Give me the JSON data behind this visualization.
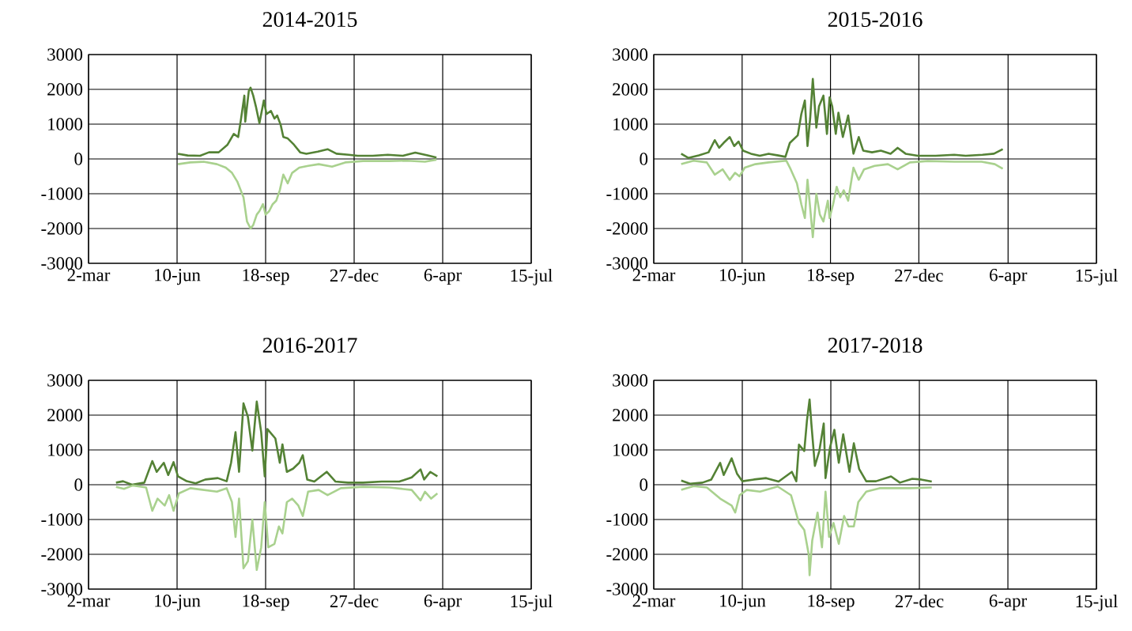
{
  "chart_data": [
    {
      "type": "line",
      "title": "2014-2015",
      "xlim": [
        "2014-03-02",
        "2015-07-15"
      ],
      "ylim": [
        -3000,
        3000
      ],
      "xticks": [
        {
          "value": "2014-03-02",
          "label": "2-mar"
        },
        {
          "value": "2014-06-10",
          "label": "10-jun"
        },
        {
          "value": "2014-09-18",
          "label": "18-sep"
        },
        {
          "value": "2014-12-27",
          "label": "27-dec"
        },
        {
          "value": "2015-04-06",
          "label": "6-apr"
        },
        {
          "value": "2015-07-15",
          "label": "15-jul"
        }
      ],
      "yticks": [
        -3000,
        -2000,
        -1000,
        0,
        1000,
        2000,
        3000
      ],
      "grid": true,
      "marker": "none",
      "line_style": "solid",
      "series": [
        {
          "color": "#548235",
          "x": [
            "2014-06-11",
            "2014-06-22",
            "2014-07-06",
            "2014-07-16",
            "2014-07-27",
            "2014-08-06",
            "2014-08-13",
            "2014-08-18",
            "2014-08-21",
            "2014-08-25",
            "2014-08-26",
            "2014-08-30",
            "2014-09-01",
            "2014-09-04",
            "2014-09-07",
            "2014-09-11",
            "2014-09-16",
            "2014-09-19",
            "2014-09-24",
            "2014-09-28",
            "2014-10-01",
            "2014-10-05",
            "2014-10-08",
            "2014-10-13",
            "2014-10-20",
            "2014-10-27",
            "2014-11-03",
            "2014-11-16",
            "2014-11-27",
            "2014-12-07",
            "2014-12-21",
            "2014-12-31",
            "2015-01-17",
            "2015-02-03",
            "2015-02-20",
            "2015-03-06",
            "2015-03-20",
            "2015-03-30"
          ],
          "values": [
            150,
            100,
            90,
            190,
            190,
            410,
            720,
            630,
            1110,
            1820,
            1070,
            1950,
            2050,
            1820,
            1510,
            1030,
            1680,
            1290,
            1380,
            1160,
            1250,
            980,
            630,
            590,
            410,
            190,
            150,
            210,
            280,
            150,
            120,
            90,
            90,
            120,
            90,
            180,
            100,
            40
          ]
        },
        {
          "color": "#a9d18e",
          "x": [
            "2014-06-11",
            "2014-06-25",
            "2014-07-10",
            "2014-07-25",
            "2014-08-04",
            "2014-08-11",
            "2014-08-17",
            "2014-08-24",
            "2014-08-28",
            "2014-09-01",
            "2014-09-04",
            "2014-09-08",
            "2014-09-11",
            "2014-09-15",
            "2014-09-18",
            "2014-09-22",
            "2014-09-26",
            "2014-09-30",
            "2014-10-04",
            "2014-10-08",
            "2014-10-13",
            "2014-10-18",
            "2014-10-26",
            "2014-11-05",
            "2014-11-17",
            "2014-12-02",
            "2014-12-17",
            "2015-01-06",
            "2015-02-05",
            "2015-02-25",
            "2015-03-17",
            "2015-03-30"
          ],
          "values": [
            -150,
            -100,
            -80,
            -150,
            -250,
            -400,
            -650,
            -1100,
            -1800,
            -2000,
            -1900,
            -1600,
            -1500,
            -1300,
            -1600,
            -1500,
            -1300,
            -1200,
            -900,
            -450,
            -700,
            -400,
            -250,
            -200,
            -150,
            -220,
            -100,
            -60,
            -60,
            -50,
            -80,
            -20
          ]
        }
      ]
    },
    {
      "type": "line",
      "title": "2015-2016",
      "xlim": [
        "2015-03-02",
        "2016-07-15"
      ],
      "ylim": [
        -3000,
        3000
      ],
      "xticks": [
        {
          "value": "2015-03-02",
          "label": "2-mar"
        },
        {
          "value": "2015-06-10",
          "label": "10-jun"
        },
        {
          "value": "2015-09-18",
          "label": "18-sep"
        },
        {
          "value": "2015-12-27",
          "label": "27-dec"
        },
        {
          "value": "2016-04-06",
          "label": "6-apr"
        },
        {
          "value": "2016-07-15",
          "label": "15-jul"
        }
      ],
      "yticks": [
        -3000,
        -2000,
        -1000,
        0,
        1000,
        2000,
        3000
      ],
      "grid": true,
      "marker": "none",
      "line_style": "solid",
      "series": [
        {
          "color": "#548235",
          "x": [
            "2015-04-02",
            "2015-04-10",
            "2015-04-22",
            "2015-05-03",
            "2015-05-10",
            "2015-05-15",
            "2015-05-20",
            "2015-05-27",
            "2015-06-01",
            "2015-06-06",
            "2015-06-11",
            "2015-06-20",
            "2015-06-30",
            "2015-07-10",
            "2015-07-21",
            "2015-07-29",
            "2015-08-03",
            "2015-08-12",
            "2015-08-16",
            "2015-08-20",
            "2015-08-23",
            "2015-08-26",
            "2015-08-29",
            "2015-09-02",
            "2015-09-05",
            "2015-09-10",
            "2015-09-14",
            "2015-09-17",
            "2015-09-20",
            "2015-09-24",
            "2015-09-27",
            "2015-10-02",
            "2015-10-08",
            "2015-10-14",
            "2015-10-20",
            "2015-10-25",
            "2015-11-04",
            "2015-11-14",
            "2015-11-25",
            "2015-12-03",
            "2015-12-12",
            "2015-12-26",
            "2016-01-15",
            "2016-02-05",
            "2016-02-18",
            "2016-03-08",
            "2016-03-21",
            "2016-03-31"
          ],
          "values": [
            150,
            30,
            100,
            190,
            540,
            320,
            460,
            630,
            370,
            500,
            240,
            150,
            90,
            150,
            100,
            60,
            460,
            680,
            1290,
            1680,
            370,
            1160,
            2300,
            900,
            1510,
            1820,
            720,
            1770,
            1510,
            720,
            1330,
            630,
            1250,
            150,
            630,
            240,
            190,
            240,
            150,
            320,
            150,
            90,
            90,
            120,
            90,
            120,
            150,
            280
          ]
        },
        {
          "color": "#a9d18e",
          "x": [
            "2015-04-02",
            "2015-04-16",
            "2015-05-01",
            "2015-05-10",
            "2015-05-19",
            "2015-05-27",
            "2015-06-02",
            "2015-06-07",
            "2015-06-13",
            "2015-06-25",
            "2015-07-10",
            "2015-07-30",
            "2015-08-04",
            "2015-08-11",
            "2015-08-16",
            "2015-08-20",
            "2015-08-23",
            "2015-08-26",
            "2015-08-29",
            "2015-09-02",
            "2015-09-06",
            "2015-09-10",
            "2015-09-15",
            "2015-09-17",
            "2015-09-21",
            "2015-09-25",
            "2015-09-29",
            "2015-10-03",
            "2015-10-08",
            "2015-10-14",
            "2015-10-20",
            "2015-10-26",
            "2015-11-07",
            "2015-11-22",
            "2015-12-03",
            "2015-12-17",
            "2016-01-06",
            "2016-02-05",
            "2016-03-07",
            "2016-03-22",
            "2016-03-31"
          ],
          "values": [
            -150,
            -50,
            -100,
            -450,
            -300,
            -600,
            -400,
            -500,
            -250,
            -150,
            -100,
            -50,
            -300,
            -700,
            -1300,
            -1700,
            -600,
            -1400,
            -2250,
            -1000,
            -1600,
            -1800,
            -1200,
            -1700,
            -1300,
            -800,
            -1100,
            -900,
            -1200,
            -250,
            -600,
            -300,
            -200,
            -150,
            -300,
            -100,
            -60,
            -80,
            -80,
            -150,
            -280
          ]
        }
      ]
    },
    {
      "type": "line",
      "title": "2016-2017",
      "xlim": [
        "2016-03-02",
        "2017-07-15"
      ],
      "ylim": [
        -3000,
        3000
      ],
      "xticks": [
        {
          "value": "2016-03-02",
          "label": "2-mar"
        },
        {
          "value": "2016-06-10",
          "label": "10-jun"
        },
        {
          "value": "2016-09-18",
          "label": "18-sep"
        },
        {
          "value": "2016-12-27",
          "label": "27-dec"
        },
        {
          "value": "2017-04-06",
          "label": "6-apr"
        },
        {
          "value": "2017-07-15",
          "label": "15-jul"
        }
      ],
      "yticks": [
        -3000,
        -2000,
        -1000,
        0,
        1000,
        2000,
        3000
      ],
      "grid": true,
      "marker": "none",
      "line_style": "solid",
      "series": [
        {
          "color": "#548235",
          "x": [
            "2016-04-02",
            "2016-04-10",
            "2016-04-20",
            "2016-05-04",
            "2016-05-13",
            "2016-05-18",
            "2016-05-26",
            "2016-05-31",
            "2016-06-06",
            "2016-06-11",
            "2016-06-21",
            "2016-07-01",
            "2016-07-12",
            "2016-07-26",
            "2016-08-05",
            "2016-08-10",
            "2016-08-15",
            "2016-08-19",
            "2016-08-24",
            "2016-08-29",
            "2016-09-03",
            "2016-09-08",
            "2016-09-13",
            "2016-09-17",
            "2016-09-20",
            "2016-09-29",
            "2016-10-04",
            "2016-10-07",
            "2016-10-12",
            "2016-10-19",
            "2016-10-26",
            "2016-10-30",
            "2016-11-04",
            "2016-11-12",
            "2016-11-26",
            "2016-12-06",
            "2016-12-20",
            "2017-01-06",
            "2017-01-27",
            "2017-02-16",
            "2017-03-02",
            "2017-03-12",
            "2017-03-16",
            "2017-03-23",
            "2017-03-31"
          ],
          "values": [
            60,
            100,
            0,
            60,
            680,
            370,
            630,
            280,
            650,
            240,
            100,
            40,
            150,
            190,
            100,
            630,
            1510,
            370,
            2340,
            1950,
            980,
            2390,
            1510,
            240,
            1600,
            1330,
            630,
            1160,
            370,
            460,
            630,
            850,
            150,
            90,
            370,
            90,
            60,
            60,
            90,
            90,
            210,
            440,
            150,
            370,
            240
          ]
        },
        {
          "color": "#a9d18e",
          "x": [
            "2016-04-02",
            "2016-04-11",
            "2016-04-21",
            "2016-05-06",
            "2016-05-13",
            "2016-05-19",
            "2016-05-27",
            "2016-06-01",
            "2016-06-06",
            "2016-06-12",
            "2016-06-25",
            "2016-07-10",
            "2016-07-25",
            "2016-08-05",
            "2016-08-11",
            "2016-08-15",
            "2016-08-19",
            "2016-08-24",
            "2016-08-29",
            "2016-09-03",
            "2016-09-08",
            "2016-09-13",
            "2016-09-17",
            "2016-09-21",
            "2016-09-28",
            "2016-10-03",
            "2016-10-07",
            "2016-10-12",
            "2016-10-18",
            "2016-10-25",
            "2016-10-30",
            "2016-11-05",
            "2016-11-17",
            "2016-11-27",
            "2016-12-12",
            "2017-01-06",
            "2017-02-05",
            "2017-03-02",
            "2017-03-12",
            "2017-03-17",
            "2017-03-24",
            "2017-03-31"
          ],
          "values": [
            -60,
            -120,
            -20,
            -80,
            -750,
            -400,
            -600,
            -300,
            -750,
            -250,
            -100,
            -150,
            -200,
            -100,
            -500,
            -1500,
            -400,
            -2400,
            -2200,
            -1000,
            -2450,
            -1800,
            -500,
            -1800,
            -1700,
            -1200,
            -1400,
            -500,
            -400,
            -600,
            -900,
            -200,
            -150,
            -300,
            -100,
            -60,
            -80,
            -150,
            -450,
            -200,
            -400,
            -250
          ]
        }
      ]
    },
    {
      "type": "line",
      "title": "2017-2018",
      "xlim": [
        "2017-03-02",
        "2018-07-15"
      ],
      "ylim": [
        -3000,
        3000
      ],
      "xticks": [
        {
          "value": "2017-03-02",
          "label": "2-mar"
        },
        {
          "value": "2017-06-10",
          "label": "10-jun"
        },
        {
          "value": "2017-09-18",
          "label": "18-sep"
        },
        {
          "value": "2017-12-27",
          "label": "27-dec"
        },
        {
          "value": "2018-04-06",
          "label": "6-apr"
        },
        {
          "value": "2018-07-15",
          "label": "15-jul"
        }
      ],
      "yticks": [
        -3000,
        -2000,
        -1000,
        0,
        1000,
        2000,
        3000
      ],
      "grid": true,
      "marker": "none",
      "line_style": "solid",
      "series": [
        {
          "color": "#548235",
          "x": [
            "2017-04-02",
            "2017-04-12",
            "2017-04-26",
            "2017-05-06",
            "2017-05-16",
            "2017-05-20",
            "2017-05-29",
            "2017-06-04",
            "2017-06-10",
            "2017-06-23",
            "2017-07-07",
            "2017-07-21",
            "2017-08-05",
            "2017-08-10",
            "2017-08-13",
            "2017-08-19",
            "2017-08-22",
            "2017-08-25",
            "2017-08-27",
            "2017-08-31",
            "2017-09-05",
            "2017-09-10",
            "2017-09-12",
            "2017-09-17",
            "2017-09-22",
            "2017-09-27",
            "2017-10-02",
            "2017-10-09",
            "2017-10-14",
            "2017-10-20",
            "2017-10-28",
            "2017-11-08",
            "2017-11-25",
            "2017-12-05",
            "2017-12-19",
            "2017-12-29",
            "2018-01-10"
          ],
          "values": [
            120,
            30,
            60,
            150,
            630,
            280,
            760,
            320,
            100,
            150,
            190,
            90,
            370,
            100,
            1150,
            970,
            1840,
            2450,
            1760,
            540,
            970,
            1760,
            190,
            1060,
            1580,
            630,
            1450,
            370,
            1190,
            450,
            100,
            100,
            240,
            60,
            170,
            150,
            90
          ]
        },
        {
          "color": "#a9d18e",
          "x": [
            "2017-04-02",
            "2017-04-16",
            "2017-05-01",
            "2017-05-16",
            "2017-05-29",
            "2017-06-02",
            "2017-06-07",
            "2017-06-15",
            "2017-06-30",
            "2017-07-20",
            "2017-08-04",
            "2017-08-13",
            "2017-08-19",
            "2017-08-24",
            "2017-08-25",
            "2017-08-28",
            "2017-09-03",
            "2017-09-08",
            "2017-09-12",
            "2017-09-16",
            "2017-09-21",
            "2017-09-27",
            "2017-10-03",
            "2017-10-08",
            "2017-10-14",
            "2017-10-19",
            "2017-10-28",
            "2017-11-12",
            "2017-11-27",
            "2017-12-17",
            "2018-01-10"
          ],
          "values": [
            -150,
            -40,
            -80,
            -400,
            -600,
            -800,
            -300,
            -150,
            -200,
            -50,
            -300,
            -1100,
            -1300,
            -2000,
            -2600,
            -1600,
            -800,
            -1800,
            -200,
            -1500,
            -1100,
            -1700,
            -900,
            -1200,
            -1200,
            -500,
            -200,
            -100,
            -100,
            -100,
            -80
          ]
        }
      ]
    }
  ]
}
